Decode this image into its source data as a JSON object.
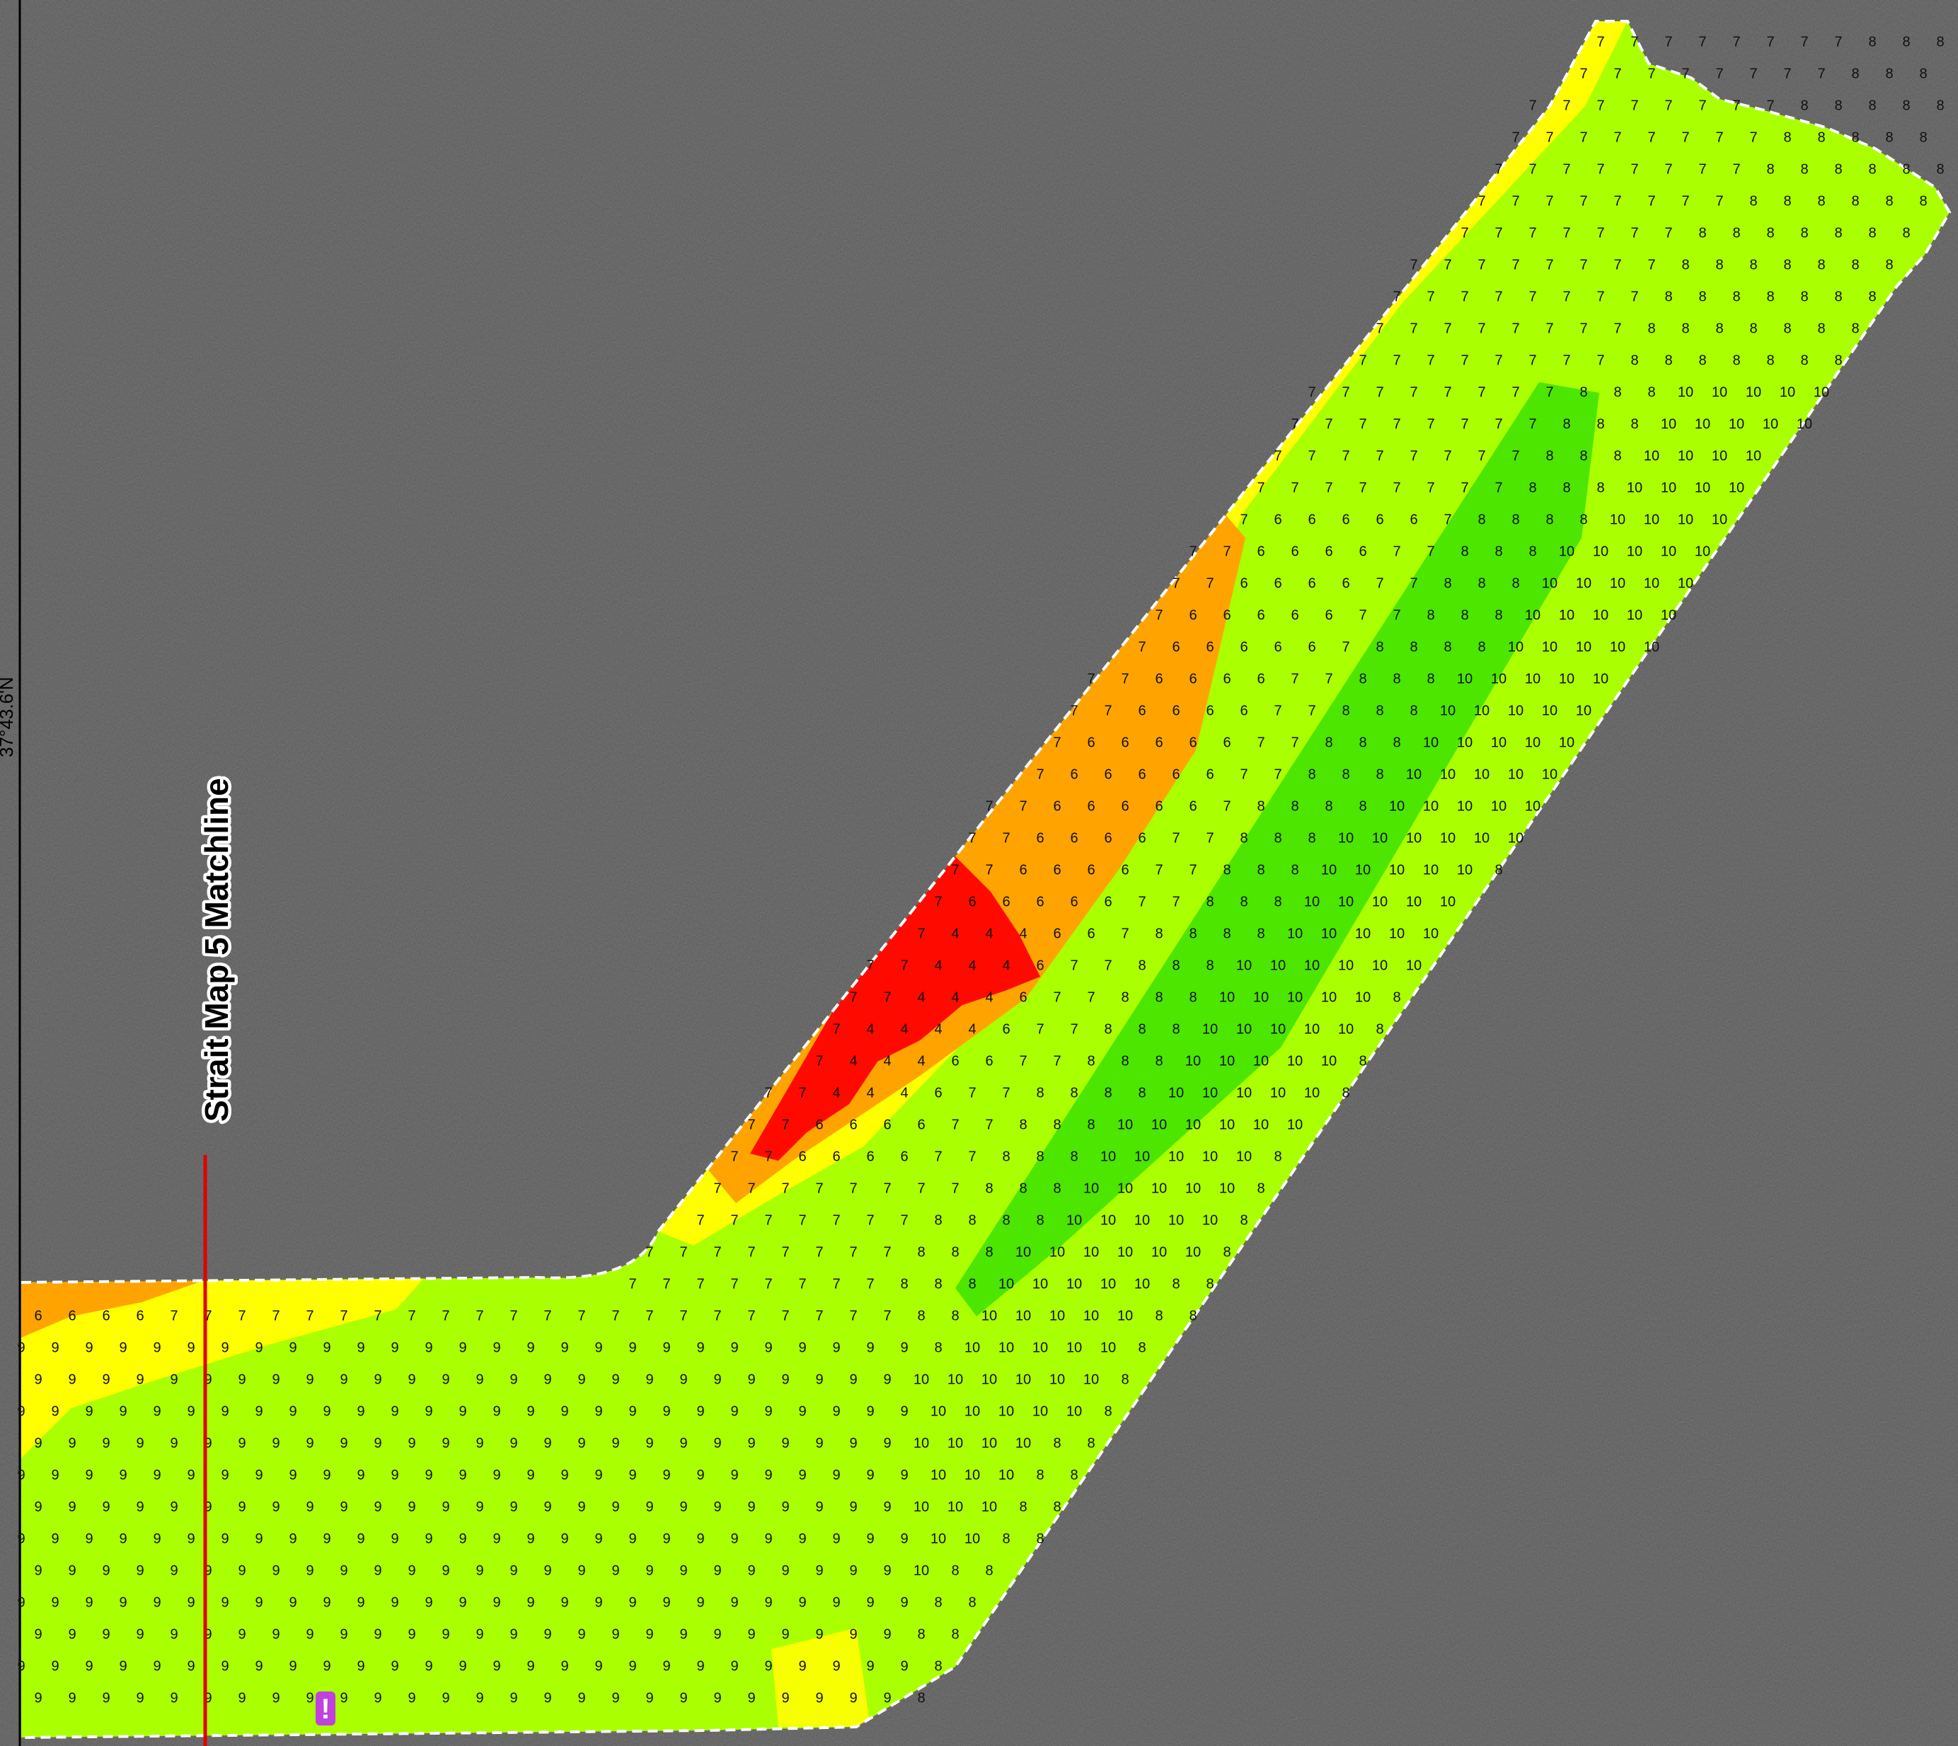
{
  "map": {
    "matchline_label": "Strait Map 5 Matchline",
    "coordinate_label": "37°43.6'N",
    "warning_marker": "!",
    "colors": {
      "land_gray": "#595959",
      "depth_4_5": "#ff0a00",
      "depth_6": "#ffa300",
      "depth_7": "#ffff00",
      "depth_8_9": "#aaff00",
      "depth_10": "#4ce600",
      "boundary": "#ffffff",
      "matchline": "#e00000",
      "marker": "#c040e0"
    },
    "soundings": [
      {
        "value": "8",
        "zone": "upper-channel"
      },
      {
        "value": "9",
        "zone": "upper-channel"
      },
      {
        "value": "10",
        "zone": "deep-channel"
      },
      {
        "value": "7",
        "zone": "north-bank"
      },
      {
        "value": "6",
        "zone": "north-shoal"
      },
      {
        "value": "5",
        "zone": "red-shoal"
      },
      {
        "value": "4",
        "zone": "red-shoal"
      }
    ]
  }
}
